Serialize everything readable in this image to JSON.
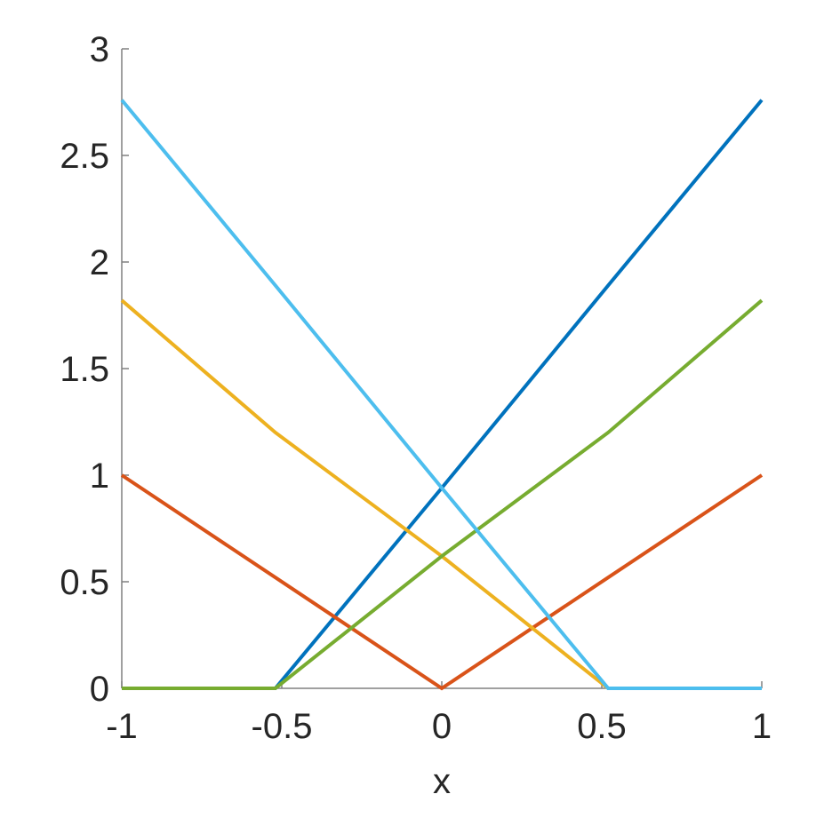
{
  "chart_data": {
    "type": "line",
    "x_label": "x",
    "x": [
      -1,
      -0.52,
      0,
      0.52,
      1
    ],
    "series": [
      {
        "color": "#0072BD",
        "values": [
          0,
          0,
          0.94,
          1.89,
          2.76
        ]
      },
      {
        "color": "#D95319",
        "values": [
          1,
          0.52,
          0,
          0.52,
          1
        ]
      },
      {
        "color": "#EDB120",
        "values": [
          1.82,
          1.2,
          0.62,
          0,
          0
        ]
      },
      {
        "color": "#77AC30",
        "values": [
          0,
          0,
          0.62,
          1.2,
          1.82
        ]
      },
      {
        "color": "#4DBEEE",
        "values": [
          2.76,
          1.89,
          0.94,
          0,
          0
        ]
      }
    ],
    "xlim": [
      -1,
      1
    ],
    "xticks": [
      -1,
      -0.5,
      0,
      0.5,
      1
    ],
    "ylim": [
      0,
      3
    ],
    "yticks": [
      0,
      0.5,
      1,
      1.5,
      2,
      2.5,
      3
    ]
  }
}
